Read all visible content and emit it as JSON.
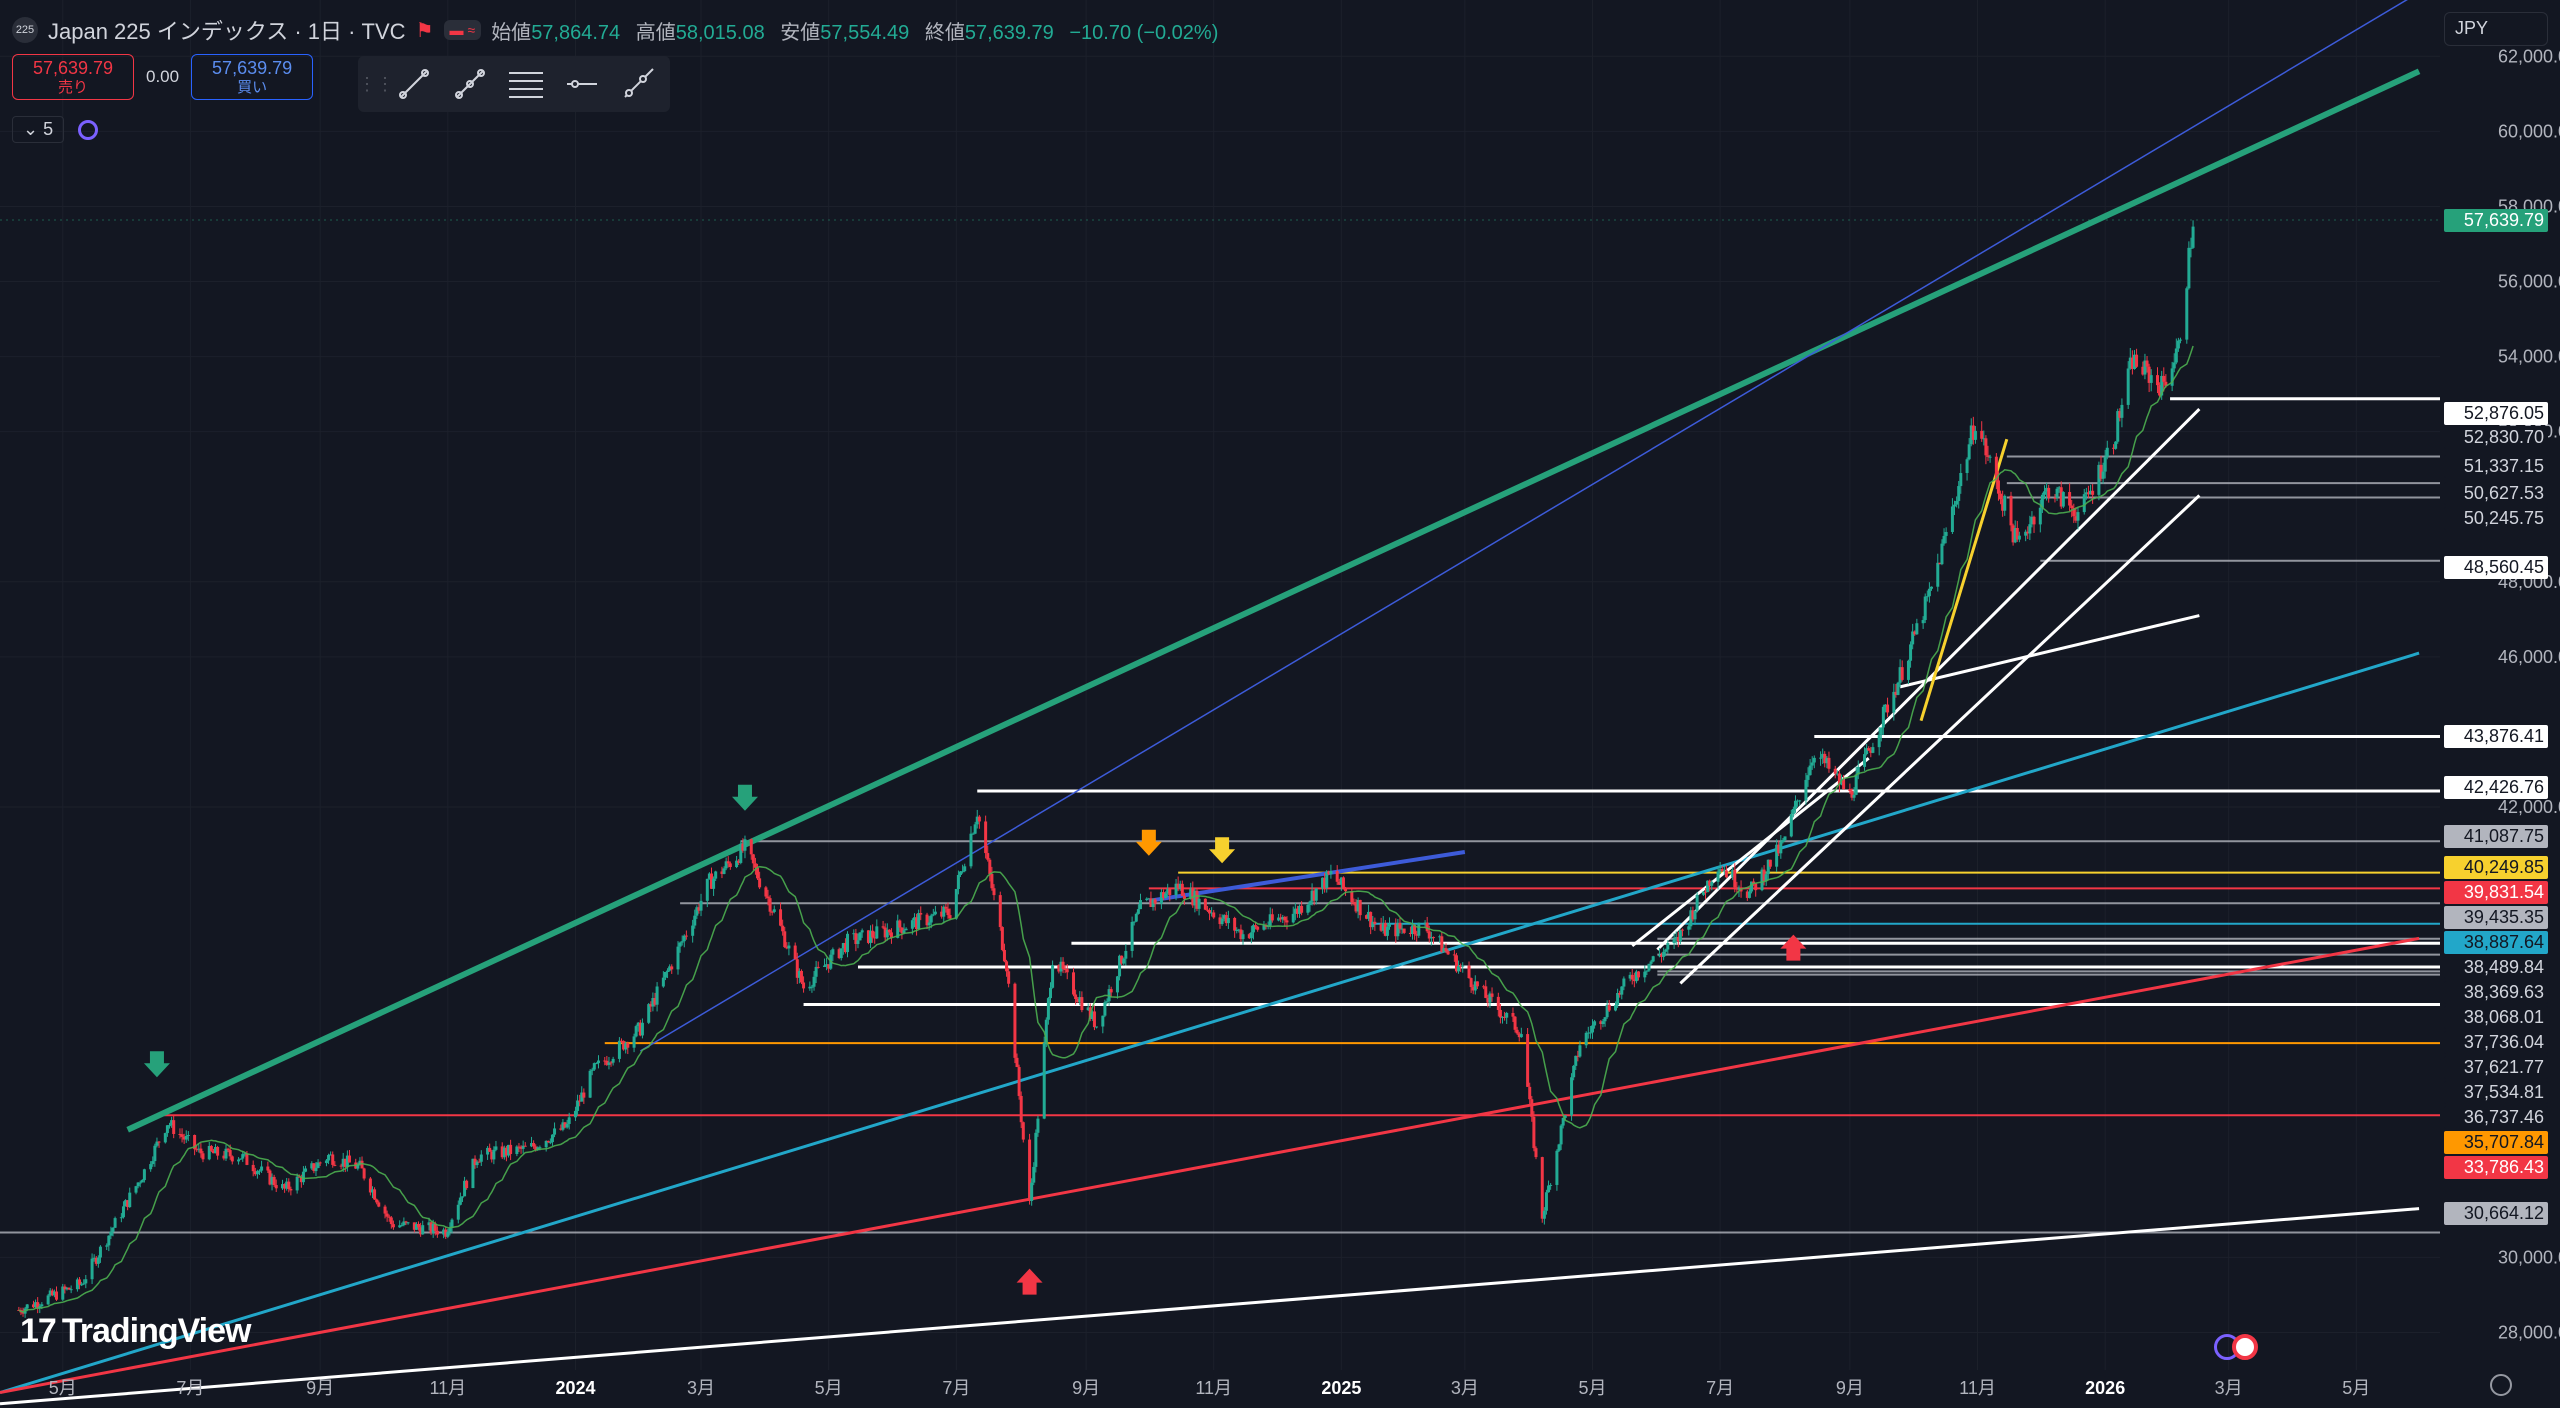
{
  "header": {
    "badge": "225",
    "title": "Japan 225 インデックス · 1日 · TVC",
    "ohlc": {
      "open_label": "始値",
      "open": "57,864.74",
      "high_label": "高値",
      "high": "58,015.08",
      "low_label": "安値",
      "low": "57,554.49",
      "close_label": "終値",
      "close": "57,639.79",
      "change": "−10.70 (−0.02%)"
    }
  },
  "trade": {
    "sell_price": "57,639.79",
    "sell_label": "売り",
    "spread": "0.00",
    "buy_price": "57,639.79",
    "buy_label": "買い"
  },
  "indicators": {
    "count": "5"
  },
  "currency": "JPY",
  "brand": "TradingView",
  "colors": {
    "bg": "#131722",
    "up": "#22ab94",
    "down": "#f23645",
    "green_line": "#26a17a",
    "cyan_line": "#22a7c9",
    "red_line": "#f23645",
    "white_line": "#ffffff"
  },
  "chart_data": {
    "type": "candlestick",
    "x_ticks": [
      "5月",
      "7月",
      "9月",
      "11月",
      "2024",
      "3月",
      "5月",
      "7月",
      "9月",
      "11月",
      "2025",
      "3月",
      "5月",
      "7月",
      "9月",
      "11月",
      "2026",
      "3月",
      "5月"
    ],
    "y_ticks": [
      "62,000.00",
      "60,000.00",
      "58,000.00",
      "56,000.00",
      "54,000.00",
      "52,000.00",
      "48,000.00",
      "46,000.00",
      "42,000.00",
      "30,000.00",
      "28,000.00"
    ],
    "ylim": [
      27000,
      63500
    ],
    "last_price": "57,639.79",
    "price_labels": [
      {
        "text": "52,876.05",
        "value": 52876.05,
        "style": "white"
      },
      {
        "text": "52,830.70",
        "value": 52830.7,
        "style": "dark"
      },
      {
        "text": "51,337.15",
        "value": 51337.15,
        "style": "dark"
      },
      {
        "text": "50,627.53",
        "value": 50627.53,
        "style": "dark"
      },
      {
        "text": "50,245.75",
        "value": 50245.75,
        "style": "dark"
      },
      {
        "text": "48,560.45",
        "value": 48560.45,
        "style": "white"
      },
      {
        "text": "43,876.41",
        "value": 43876.41,
        "style": "white"
      },
      {
        "text": "42,426.76",
        "value": 42426.76,
        "style": "white"
      },
      {
        "text": "41,087.75",
        "value": 41087.75,
        "style": "grey"
      },
      {
        "text": "40,249.85",
        "value": 40249.85,
        "style": "yellow"
      },
      {
        "text": "39,831.54",
        "value": 39831.54,
        "style": "red"
      },
      {
        "text": "39,435.35",
        "value": 39435.35,
        "style": "grey"
      },
      {
        "text": "38,887.64",
        "value": 38887.64,
        "style": "cyan"
      },
      {
        "text": "38,489.84",
        "value": 38489.84,
        "style": "dark"
      },
      {
        "text": "38,369.63",
        "value": 38369.63,
        "style": "dark"
      },
      {
        "text": "38,068.01",
        "value": 38068.01,
        "style": "dark"
      },
      {
        "text": "37,736.04",
        "value": 37736.04,
        "style": "dark"
      },
      {
        "text": "37,621.77",
        "value": 37621.77,
        "style": "dark"
      },
      {
        "text": "37,534.81",
        "value": 37534.81,
        "style": "dark"
      },
      {
        "text": "36,737.46",
        "value": 36737.46,
        "style": "dark"
      },
      {
        "text": "35,707.84",
        "value": 35707.84,
        "style": "orange"
      },
      {
        "text": "33,786.43",
        "value": 33786.43,
        "style": "red"
      },
      {
        "text": "30,664.12",
        "value": 30664.12,
        "style": "grey"
      }
    ],
    "price_path": [
      [
        "2023-04-10",
        28600
      ],
      [
        "2023-05-10",
        29300
      ],
      [
        "2023-05-25",
        30800
      ],
      [
        "2023-06-10",
        32400
      ],
      [
        "2023-06-20",
        33600
      ],
      [
        "2023-07-05",
        32800
      ],
      [
        "2023-07-25",
        32700
      ],
      [
        "2023-08-15",
        31800
      ],
      [
        "2023-09-05",
        32700
      ],
      [
        "2023-09-20",
        32400
      ],
      [
        "2023-10-05",
        30900
      ],
      [
        "2023-10-31",
        30700
      ],
      [
        "2023-11-15",
        32700
      ],
      [
        "2023-12-10",
        32900
      ],
      [
        "2023-12-28",
        33500
      ],
      [
        "2024-01-10",
        35000
      ],
      [
        "2024-02-01",
        36100
      ],
      [
        "2024-02-20",
        38300
      ],
      [
        "2024-03-05",
        40000
      ],
      [
        "2024-03-22",
        40900
      ],
      [
        "2024-04-05",
        39200
      ],
      [
        "2024-04-19",
        37200
      ],
      [
        "2024-05-10",
        38400
      ],
      [
        "2024-06-10",
        38900
      ],
      [
        "2024-06-28",
        39200
      ],
      [
        "2024-07-11",
        41900
      ],
      [
        "2024-07-25",
        37800
      ],
      [
        "2024-08-05",
        31400
      ],
      [
        "2024-08-16",
        38000
      ],
      [
        "2024-09-06",
        36200
      ],
      [
        "2024-09-27",
        39300
      ],
      [
        "2024-10-15",
        39900
      ],
      [
        "2024-11-15",
        38600
      ],
      [
        "2024-12-10",
        39200
      ],
      [
        "2024-12-27",
        40200
      ],
      [
        "2025-01-20",
        38700
      ],
      [
        "2025-02-10",
        38800
      ],
      [
        "2025-03-10",
        37000
      ],
      [
        "2025-03-28",
        36000
      ],
      [
        "2025-04-07",
        31100
      ],
      [
        "2025-04-25",
        35700
      ],
      [
        "2025-05-20",
        37500
      ],
      [
        "2025-06-10",
        38400
      ],
      [
        "2025-06-30",
        40500
      ],
      [
        "2025-07-15",
        39700
      ],
      [
        "2025-07-31",
        41000
      ],
      [
        "2025-08-15",
        43500
      ],
      [
        "2025-09-01",
        42300
      ],
      [
        "2025-09-25",
        45500
      ],
      [
        "2025-10-10",
        47800
      ],
      [
        "2025-10-31",
        52300
      ],
      [
        "2025-11-20",
        49000
      ],
      [
        "2025-12-05",
        50500
      ],
      [
        "2025-12-20",
        49800
      ],
      [
        "2026-01-05",
        51800
      ],
      [
        "2026-01-14",
        53900
      ],
      [
        "2026-01-28",
        53200
      ],
      [
        "2026-02-05",
        54200
      ],
      [
        "2026-02-12",
        57600
      ]
    ],
    "trendlines": [
      {
        "color": "green",
        "from": [
          "2023-06-01",
          33400
        ],
        "to": [
          "2026-05-31",
          61600
        ]
      },
      {
        "color": "blue",
        "from": [
          "2024-02-01",
          35500
        ],
        "to": [
          "2026-05-31",
          63700
        ]
      },
      {
        "color": "cyan",
        "from": [
          "2023-04-01",
          26400
        ],
        "to": [
          "2026-05-31",
          46100
        ]
      },
      {
        "color": "red",
        "from": [
          "2023-04-01",
          26400
        ],
        "to": [
          "2026-05-31",
          38500
        ]
      },
      {
        "color": "white",
        "from": [
          "2023-04-01",
          26100
        ],
        "to": [
          "2026-05-31",
          31300
        ]
      },
      {
        "color": "white",
        "from": [
          "2025-06-01",
          38200
        ],
        "to": [
          "2026-02-15",
          52600
        ]
      },
      {
        "color": "white",
        "from": [
          "2025-06-12",
          37300
        ],
        "to": [
          "2026-02-15",
          50300
        ]
      },
      {
        "color": "white",
        "from": [
          "2025-09-25",
          45200
        ],
        "to": [
          "2026-02-15",
          47100
        ]
      },
      {
        "color": "white",
        "from": [
          "2025-05-20",
          38300
        ],
        "to": [
          "2025-09-10",
          43300
        ]
      },
      {
        "color": "yellow",
        "from": [
          "2025-10-05",
          44300
        ],
        "to": [
          "2025-11-15",
          51800
        ]
      },
      {
        "color": "blue",
        "from": [
          "2024-10-01",
          39500
        ],
        "to": [
          "2025-03-01",
          40800
        ]
      }
    ],
    "hlines": [
      {
        "value": 52876.05,
        "color": "white",
        "from": "2026-02-01"
      },
      {
        "value": 51337.15,
        "color": "grey",
        "from": "2025-11-15"
      },
      {
        "value": 50627.53,
        "color": "grey",
        "from": "2025-11-15"
      },
      {
        "value": 50245.75,
        "color": "grey",
        "from": "2025-11-15"
      },
      {
        "value": 48560.45,
        "color": "grey",
        "from": "2025-12-01"
      },
      {
        "value": 43876.41,
        "color": "white",
        "from": "2025-08-15"
      },
      {
        "value": 42426.76,
        "color": "white",
        "from": "2024-07-11"
      },
      {
        "value": 41087.75,
        "color": "grey",
        "from": "2024-03-20"
      },
      {
        "value": 40249.85,
        "color": "yellow",
        "from": "2024-10-15"
      },
      {
        "value": 39831.54,
        "color": "red",
        "from": "2024-10-01"
      },
      {
        "value": 39435.35,
        "color": "grey",
        "from": "2024-02-20"
      },
      {
        "value": 38887.64,
        "color": "cyan",
        "from": "2025-01-15"
      },
      {
        "value": 38489.84,
        "color": "grey",
        "from": "2025-06-01"
      },
      {
        "value": 38369.63,
        "color": "white",
        "from": "2024-08-25"
      },
      {
        "value": 38068.01,
        "color": "grey",
        "from": "2025-06-01"
      },
      {
        "value": 37736.04,
        "color": "white",
        "from": "2024-05-15"
      },
      {
        "value": 37621.77,
        "color": "grey",
        "from": "2025-06-01"
      },
      {
        "value": 37534.81,
        "color": "grey",
        "from": "2025-06-01"
      },
      {
        "value": 36737.46,
        "color": "white",
        "from": "2024-04-19"
      },
      {
        "value": 35707.84,
        "color": "orange",
        "from": "2024-01-15"
      },
      {
        "value": 33786.43,
        "color": "red",
        "from": "2023-06-15"
      },
      {
        "value": 30664.12,
        "color": "grey",
        "from": "2023-04-01"
      }
    ],
    "markers": [
      {
        "date": "2023-06-15",
        "price": 34800,
        "dir": "down",
        "color": "green"
      },
      {
        "date": "2024-03-22",
        "price": 41900,
        "dir": "down",
        "color": "green"
      },
      {
        "date": "2024-10-01",
        "price": 40700,
        "dir": "down",
        "color": "orange"
      },
      {
        "date": "2024-11-05",
        "price": 40500,
        "dir": "down",
        "color": "yellow"
      },
      {
        "date": "2024-08-05",
        "price": 29700,
        "dir": "up",
        "color": "red"
      },
      {
        "date": "2025-08-05",
        "price": 38600,
        "dir": "up",
        "color": "red"
      }
    ]
  }
}
